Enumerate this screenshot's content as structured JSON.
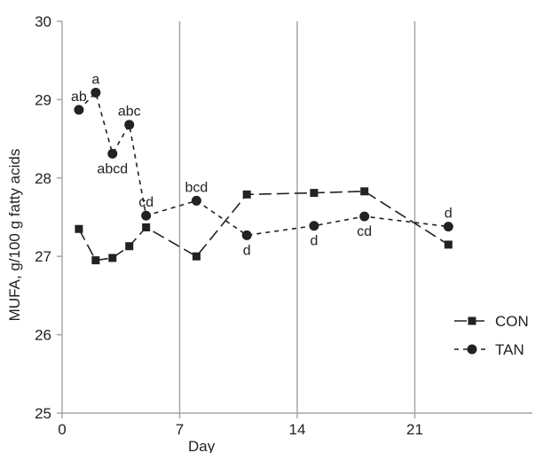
{
  "chart_data": {
    "type": "line",
    "title": "",
    "xlabel": "Day",
    "ylabel": "MUFA, g/100 g fatty acids",
    "xlim": [
      0,
      28
    ],
    "ylim": [
      25,
      30
    ],
    "x_ticks": [
      0,
      7,
      14,
      21
    ],
    "y_ticks": [
      25,
      26,
      27,
      28,
      29,
      30
    ],
    "grid": "vertical lines at x ticks",
    "legend_position": "right",
    "series": [
      {
        "name": "CON",
        "marker": "square",
        "dash": "long-dash",
        "color": "#222222",
        "x": [
          1,
          2,
          3,
          4,
          5,
          8,
          11,
          15,
          18,
          23
        ],
        "y": [
          27.35,
          26.95,
          26.98,
          27.13,
          27.37,
          27.0,
          27.79,
          27.81,
          27.83,
          27.15
        ]
      },
      {
        "name": "TAN",
        "marker": "circle",
        "dash": "short-dash",
        "color": "#222222",
        "x": [
          1,
          2,
          3,
          4,
          5,
          8,
          11,
          15,
          18,
          23
        ],
        "y": [
          28.87,
          29.09,
          28.31,
          28.68,
          27.52,
          27.71,
          27.27,
          27.39,
          27.51,
          27.38
        ]
      }
    ],
    "annotations": [
      {
        "text": "ab",
        "x": 1,
        "y": 28.87,
        "pos": "above"
      },
      {
        "text": "a",
        "x": 2,
        "y": 29.09,
        "pos": "above"
      },
      {
        "text": "abcd",
        "x": 3,
        "y": 28.31,
        "pos": "below"
      },
      {
        "text": "abc",
        "x": 4,
        "y": 28.68,
        "pos": "above"
      },
      {
        "text": "cd",
        "x": 5,
        "y": 27.52,
        "pos": "above"
      },
      {
        "text": "bcd",
        "x": 8,
        "y": 27.71,
        "pos": "above"
      },
      {
        "text": "d",
        "x": 11,
        "y": 27.27,
        "pos": "below"
      },
      {
        "text": "d",
        "x": 15,
        "y": 27.39,
        "pos": "below"
      },
      {
        "text": "cd",
        "x": 18,
        "y": 27.51,
        "pos": "below"
      },
      {
        "text": "d",
        "x": 23,
        "y": 27.38,
        "pos": "above"
      }
    ]
  }
}
